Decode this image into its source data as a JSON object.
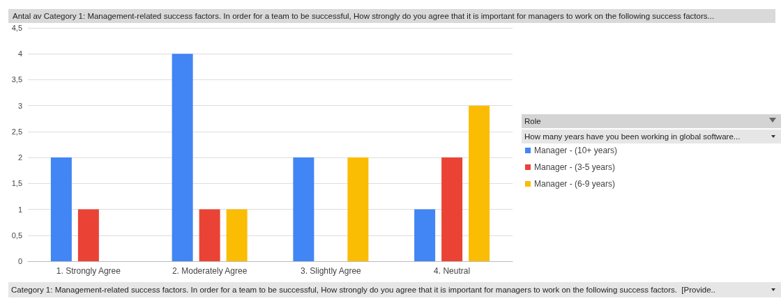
{
  "chart_data": {
    "type": "bar",
    "title": "Antal av Category 1: Management-related success factors. In order for a team to be successful, How strongly do you agree that it is important for managers to work on the following success factors...",
    "xlabel": "Category 1: Management-related success factors. In order for a team to be successful, How strongly do you agree that it is important for managers to work on the following success factors.  [Provide..",
    "legend_title": "Role",
    "annotations": [
      "How many years have you been working in global software..."
    ],
    "categories": [
      "1. Strongly Agree",
      "2. Moderately Agree",
      "3. Slightly Agree",
      "4. Neutral"
    ],
    "series": [
      {
        "name": "Manager - (10+ years)",
        "color": "#4285f4",
        "values": [
          2,
          4,
          2,
          1
        ]
      },
      {
        "name": "Manager - (3-5 years)",
        "color": "#ea4335",
        "values": [
          1,
          1,
          null,
          2
        ]
      },
      {
        "name": "Manager - (6-9 years)",
        "color": "#fbbc04",
        "values": [
          null,
          1,
          2,
          3
        ]
      }
    ],
    "ylim": [
      0,
      4.5
    ],
    "yticks": [
      0,
      {
        "value": 0.5,
        "label": "0,5"
      },
      1,
      {
        "value": 1.5,
        "label": "1,5"
      },
      2,
      {
        "value": 2.5,
        "label": "2,5"
      },
      3,
      {
        "value": 3.5,
        "label": "3,5"
      },
      4,
      {
        "value": 4.5,
        "label": "4,5"
      }
    ],
    "grid": "y",
    "legend": "right"
  }
}
